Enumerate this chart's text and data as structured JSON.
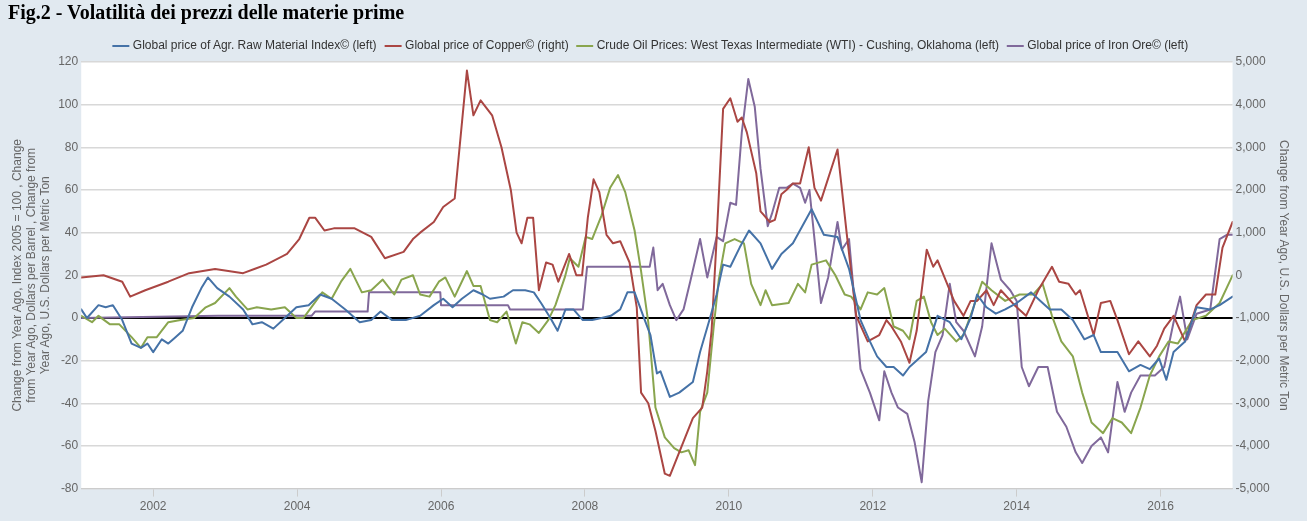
{
  "chart_data": {
    "type": "line",
    "title": "Fig.2 - Volatilità dei prezzi delle materie prime",
    "ylabel": "Change from Year Ago, Index 2005 = 100 , Change from Year Ago, Dollars per Barrel , Change from Year Ago, U.S. Dollars per Metric Ton",
    "y2label": "Change from Year Ago, U.S. Dollars per Metric Ton",
    "xlim": [
      2001,
      2017
    ],
    "xticks": [
      2002,
      2004,
      2006,
      2008,
      2010,
      2012,
      2014,
      2016
    ],
    "ylim": [
      -80,
      120
    ],
    "yticks": [
      -80,
      -60,
      -40,
      -20,
      0,
      20,
      40,
      60,
      80,
      100,
      120
    ],
    "y2lim": [
      -5000,
      5000
    ],
    "y2ticks": [
      {
        "value": -5000,
        "label": "-5,000"
      },
      {
        "value": -4000,
        "label": "-4,000"
      },
      {
        "value": -3000,
        "label": "-3,000"
      },
      {
        "value": -2000,
        "label": "-2,000"
      },
      {
        "value": -1000,
        "label": "-1,000"
      },
      0,
      {
        "value": 1000,
        "label": "1,000"
      },
      {
        "value": 2000,
        "label": "2,000"
      },
      {
        "value": 3000,
        "label": "3,000"
      },
      {
        "value": 4000,
        "label": "4,000"
      },
      {
        "value": 5000,
        "label": "5,000"
      }
    ],
    "grid": "y",
    "legend": "top",
    "ref_lines": [
      {
        "axis": "y",
        "value": 0,
        "color": "#000000"
      }
    ],
    "series": [
      {
        "name": "Global price of Agr. Raw Material Index© (left)",
        "color": "#4572a7",
        "x": [
          2001.0,
          2001.08,
          2001.24,
          2001.34,
          2001.44,
          2001.57,
          2001.7,
          2001.83,
          2001.92,
          2002.0,
          2002.12,
          2002.21,
          2002.31,
          2002.41,
          2002.54,
          2002.67,
          2002.76,
          2002.89,
          2003.06,
          2003.25,
          2003.38,
          2003.51,
          2003.67,
          2003.83,
          2003.99,
          2004.16,
          2004.32,
          2004.48,
          2004.67,
          2004.87,
          2005.03,
          2005.16,
          2005.32,
          2005.51,
          2005.71,
          2005.9,
          2006.03,
          2006.16,
          2006.29,
          2006.45,
          2006.58,
          2006.68,
          2006.87,
          2007.0,
          2007.17,
          2007.29,
          2007.39,
          2007.52,
          2007.62,
          2007.73,
          2007.84,
          2007.97,
          2008.1,
          2008.23,
          2008.36,
          2008.49,
          2008.59,
          2008.69,
          2008.82,
          2008.91,
          2009.0,
          2009.05,
          2009.18,
          2009.31,
          2009.5,
          2009.6,
          2009.73,
          2009.83,
          2009.92,
          2010.02,
          2010.15,
          2010.28,
          2010.44,
          2010.6,
          2010.73,
          2010.89,
          2011.02,
          2011.15,
          2011.32,
          2011.51,
          2011.67,
          2011.83,
          2011.96,
          2012.06,
          2012.19,
          2012.29,
          2012.42,
          2012.51,
          2012.61,
          2012.74,
          2012.9,
          2013.07,
          2013.23,
          2013.36,
          2013.45,
          2013.58,
          2013.71,
          2013.84,
          2014.0,
          2014.2,
          2014.33,
          2014.46,
          2014.62,
          2014.78,
          2014.94,
          2015.07,
          2015.17,
          2015.4,
          2015.56,
          2015.72,
          2015.85,
          2015.98,
          2016.08,
          2016.18,
          2016.34,
          2016.5,
          2016.69,
          2016.82,
          2017.0
        ],
        "values": [
          4,
          0,
          6,
          5,
          6,
          -1,
          -12,
          -14,
          -12,
          -16,
          -10,
          -12,
          -9,
          -6,
          5,
          14,
          19,
          14,
          10,
          4,
          -3,
          -2,
          -5,
          0,
          5,
          6,
          11,
          9,
          4,
          -2,
          -1,
          3,
          -1,
          -1,
          1,
          6,
          9,
          5,
          9,
          13,
          11,
          9,
          10,
          13,
          13,
          12,
          7,
          0,
          -6,
          4,
          4,
          -1,
          -1,
          0,
          1,
          4,
          12,
          12,
          0,
          -8,
          -26,
          -25,
          -37,
          -35,
          -30,
          -16,
          -1,
          11,
          25,
          24,
          33,
          41,
          35,
          23,
          30,
          35,
          43,
          51,
          39,
          38,
          23,
          -1,
          -11,
          -18,
          -23,
          -23,
          -27,
          -23,
          -20,
          -16,
          1,
          -2,
          -10,
          0,
          11,
          5,
          2,
          4,
          7,
          12,
          8,
          4,
          4,
          -1,
          -10,
          -8,
          -16,
          -16,
          -25,
          -22,
          -24,
          -19,
          -29,
          -16,
          -11,
          5,
          4,
          6,
          10
        ]
      },
      {
        "name": "Global price of Copper© (right)",
        "color": "#aa4643",
        "axis": "y2",
        "x": [
          2001.0,
          2001.31,
          2001.57,
          2001.68,
          2001.89,
          2002.21,
          2002.5,
          2002.86,
          2003.25,
          2003.57,
          2003.86,
          2004.03,
          2004.17,
          2004.25,
          2004.38,
          2004.51,
          2004.8,
          2005.03,
          2005.22,
          2005.48,
          2005.61,
          2005.71,
          2005.9,
          2006.03,
          2006.19,
          2006.36,
          2006.45,
          2006.55,
          2006.71,
          2006.84,
          2006.97,
          2007.05,
          2007.12,
          2007.2,
          2007.28,
          2007.36,
          2007.46,
          2007.55,
          2007.63,
          2007.78,
          2007.88,
          2007.96,
          2008.04,
          2008.12,
          2008.2,
          2008.3,
          2008.39,
          2008.49,
          2008.62,
          2008.72,
          2008.78,
          2008.88,
          2008.98,
          2009.11,
          2009.18,
          2009.31,
          2009.5,
          2009.63,
          2009.7,
          2009.76,
          2009.83,
          2009.92,
          2010.02,
          2010.12,
          2010.18,
          2010.25,
          2010.38,
          2010.44,
          2010.57,
          2010.64,
          2010.73,
          2010.8,
          2010.89,
          2010.99,
          2011.11,
          2011.19,
          2011.28,
          2011.51,
          2011.64,
          2011.77,
          2011.93,
          2012.09,
          2012.19,
          2012.26,
          2012.39,
          2012.51,
          2012.61,
          2012.75,
          2012.84,
          2012.9,
          2013.13,
          2013.26,
          2013.36,
          2013.45,
          2013.58,
          2013.68,
          2013.78,
          2013.97,
          2014.13,
          2014.3,
          2014.49,
          2014.59,
          2014.72,
          2014.82,
          2014.88,
          2014.98,
          2015.07,
          2015.17,
          2015.3,
          2015.4,
          2015.56,
          2015.69,
          2015.85,
          2015.95,
          2016.05,
          2016.18,
          2016.34,
          2016.5,
          2016.63,
          2016.76,
          2016.86,
          2017.0
        ],
        "values": [
          -50,
          0,
          -150,
          -500,
          -350,
          -150,
          50,
          150,
          50,
          250,
          500,
          850,
          1350,
          1350,
          1050,
          1100,
          1100,
          900,
          400,
          550,
          850,
          1000,
          1250,
          1600,
          1800,
          4800,
          3750,
          4100,
          3750,
          3000,
          2000,
          1000,
          750,
          1350,
          1350,
          -350,
          300,
          250,
          -150,
          500,
          0,
          0,
          1350,
          2250,
          1950,
          950,
          750,
          800,
          300,
          -750,
          -2750,
          -3000,
          -3650,
          -4650,
          -4700,
          -4150,
          -3350,
          -3100,
          -2250,
          -1300,
          850,
          3900,
          4150,
          3600,
          3700,
          3350,
          2400,
          1500,
          1250,
          1300,
          1900,
          2000,
          2150,
          2150,
          3000,
          2050,
          1750,
          2950,
          950,
          -950,
          -1550,
          -1400,
          -1050,
          -1200,
          -1550,
          -2050,
          -1300,
          600,
          200,
          350,
          -600,
          -950,
          -600,
          -600,
          -350,
          -700,
          -350,
          -700,
          -950,
          -350,
          200,
          -150,
          -200,
          -450,
          -350,
          -900,
          -1400,
          -650,
          -600,
          -1050,
          -1850,
          -1550,
          -1900,
          -1650,
          -1250,
          -950,
          -1550,
          -700,
          -450,
          -450,
          650,
          1250
        ]
      },
      {
        "name": "Crude Oil Prices: West Texas Intermediate (WTI) - Cushing, Oklahoma (left)",
        "color": "#89a54e",
        "x": [
          2001.0,
          2001.15,
          2001.24,
          2001.4,
          2001.53,
          2001.7,
          2001.83,
          2001.92,
          2002.05,
          2002.21,
          2002.38,
          2002.57,
          2002.73,
          2002.86,
          2003.06,
          2003.15,
          2003.31,
          2003.44,
          2003.64,
          2003.83,
          2003.99,
          2004.09,
          2004.22,
          2004.35,
          2004.48,
          2004.61,
          2004.74,
          2004.9,
          2005.03,
          2005.19,
          2005.35,
          2005.45,
          2005.61,
          2005.71,
          2005.84,
          2005.97,
          2006.06,
          2006.19,
          2006.36,
          2006.45,
          2006.55,
          2006.68,
          2006.78,
          2006.91,
          2007.04,
          2007.13,
          2007.23,
          2007.36,
          2007.49,
          2007.59,
          2007.72,
          2007.79,
          2007.91,
          2008.01,
          2008.1,
          2008.23,
          2008.35,
          2008.46,
          2008.56,
          2008.69,
          2008.78,
          2008.88,
          2008.98,
          2009.11,
          2009.24,
          2009.34,
          2009.44,
          2009.53,
          2009.6,
          2009.7,
          2009.79,
          2009.86,
          2009.95,
          2010.08,
          2010.21,
          2010.31,
          2010.44,
          2010.51,
          2010.6,
          2010.83,
          2010.96,
          2011.06,
          2011.15,
          2011.35,
          2011.48,
          2011.61,
          2011.7,
          2011.83,
          2011.93,
          2012.06,
          2012.16,
          2012.29,
          2012.42,
          2012.51,
          2012.61,
          2012.71,
          2012.81,
          2012.9,
          2013.0,
          2013.16,
          2013.26,
          2013.39,
          2013.52,
          2013.65,
          2013.84,
          2014.04,
          2014.23,
          2014.36,
          2014.49,
          2014.62,
          2014.78,
          2014.91,
          2015.04,
          2015.2,
          2015.33,
          2015.46,
          2015.59,
          2015.72,
          2015.85,
          2015.98,
          2016.11,
          2016.24,
          2016.44,
          2016.63,
          2016.82,
          2017.0
        ],
        "values": [
          1,
          -2,
          1,
          -3,
          -3,
          -9,
          -14,
          -9,
          -9,
          -2,
          -1,
          0,
          5,
          7,
          14,
          10,
          4,
          5,
          4,
          5,
          0,
          0,
          6,
          12,
          9,
          17,
          23,
          12,
          13,
          18,
          11,
          18,
          20,
          11,
          10,
          17,
          19,
          10,
          22,
          15,
          15,
          -1,
          -2,
          3,
          -12,
          -2,
          -3,
          -7,
          -1,
          6,
          19,
          28,
          24,
          38,
          37,
          48,
          61,
          67,
          59,
          41,
          22,
          -2,
          -42,
          -56,
          -61,
          -63,
          -62,
          -69,
          -44,
          -35,
          -4,
          18,
          35,
          37,
          35,
          16,
          6,
          13,
          6,
          7,
          16,
          12,
          25,
          27,
          20,
          11,
          10,
          4,
          12,
          11,
          14,
          -4,
          -6,
          -10,
          8,
          10,
          -2,
          -8,
          -5,
          -11,
          -8,
          4,
          17,
          13,
          8,
          11,
          11,
          16,
          1,
          -11,
          -18,
          -35,
          -49,
          -54,
          -47,
          -49,
          -54,
          -42,
          -27,
          -18,
          -11,
          -12,
          -1,
          1,
          7,
          20
        ]
      },
      {
        "name": "Global price of Iron Ore© (left)",
        "color": "#80699b",
        "x": [
          2001.0,
          2002.9,
          2004.2,
          2004.25,
          2004.98,
          2005.0,
          2005.99,
          2006.0,
          2006.93,
          2006.96,
          2007.97,
          2008.03,
          2008.9,
          2008.95,
          2009.01,
          2009.08,
          2009.18,
          2009.27,
          2009.37,
          2009.47,
          2009.6,
          2009.7,
          2009.83,
          2009.92,
          2010.02,
          2010.1,
          2010.18,
          2010.27,
          2010.36,
          2010.44,
          2010.54,
          2010.6,
          2010.7,
          2010.8,
          2010.89,
          2010.99,
          2011.06,
          2011.12,
          2011.19,
          2011.28,
          2011.38,
          2011.51,
          2011.57,
          2011.67,
          2011.83,
          2011.96,
          2012.09,
          2012.16,
          2012.26,
          2012.35,
          2012.48,
          2012.58,
          2012.68,
          2012.77,
          2012.87,
          2012.97,
          2013.07,
          2013.16,
          2013.26,
          2013.42,
          2013.52,
          2013.65,
          2013.78,
          2013.91,
          2014.0,
          2014.07,
          2014.17,
          2014.3,
          2014.43,
          2014.56,
          2014.69,
          2014.82,
          2014.91,
          2015.04,
          2015.17,
          2015.27,
          2015.4,
          2015.5,
          2015.59,
          2015.72,
          2015.92,
          2016.05,
          2016.18,
          2016.27,
          2016.37,
          2016.5,
          2016.69,
          2016.82,
          2016.92,
          2017.0
        ],
        "values": [
          0,
          1,
          1,
          3,
          3,
          12,
          12,
          6,
          6,
          4,
          4,
          24,
          24,
          33,
          13,
          16,
          6,
          -1,
          4,
          18,
          37,
          19,
          38,
          36,
          54,
          53,
          87,
          112,
          99,
          70,
          43,
          49,
          61,
          61,
          63,
          61,
          54,
          60,
          37,
          7,
          19,
          45,
          32,
          37,
          -24,
          -35,
          -48,
          -25,
          -35,
          -42,
          -45,
          -58,
          -77,
          -39,
          -16,
          -8,
          16,
          -2,
          -6,
          -18,
          -4,
          35,
          18,
          13,
          8,
          -23,
          -32,
          -23,
          -23,
          -44,
          -51,
          -63,
          -68,
          -60,
          -56,
          -63,
          -30,
          -44,
          -35,
          -27,
          -27,
          -23,
          -2,
          10,
          -10,
          2,
          4,
          37,
          39,
          39
        ]
      }
    ]
  }
}
